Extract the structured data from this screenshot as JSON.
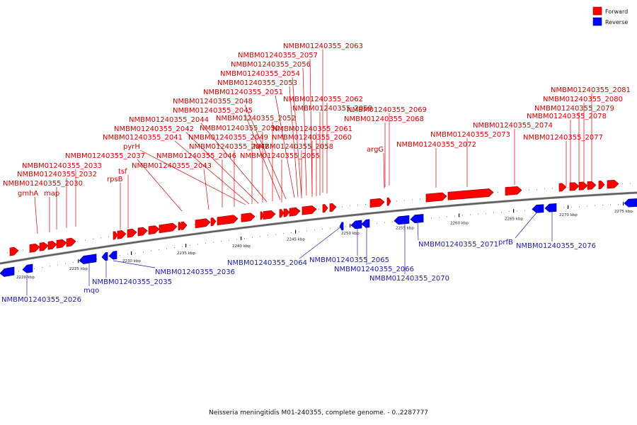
{
  "legend": {
    "forward": "Forward",
    "reverse": "Reverse",
    "forward_color": "#ff0000",
    "reverse_color": "#0000ff"
  },
  "caption": "Neisseria meningitidis M01-240355, complete genome. - 0..2287777",
  "ticks": [
    "2220 kbp",
    "2225 kbp",
    "2230 kbp",
    "2235 kbp",
    "2240 kbp",
    "2245 kbp",
    "2250 kbp",
    "2255 kbp",
    "2260 kbp",
    "2265 kbp",
    "2270 kbp",
    "2275 kbp"
  ],
  "forward_genes": [
    {
      "name": "NMBM01240355_2063"
    },
    {
      "name": "NMBM01240355_2057"
    },
    {
      "name": "NMBM01240355_2056"
    },
    {
      "name": "NMBM01240355_2054"
    },
    {
      "name": "NMBM01240355_2053"
    },
    {
      "name": "NMBM01240355_2051"
    },
    {
      "name": "NMBM01240355_2048"
    },
    {
      "name": "NMBM01240355_2062"
    },
    {
      "name": "NMBM01240355_2045"
    },
    {
      "name": "NMBM01240355_2052"
    },
    {
      "name": "NMBM01240355_2059"
    },
    {
      "name": "NMBM01240355_2069"
    },
    {
      "name": "NMBM01240355_2044"
    },
    {
      "name": "NMBM01240355_2068"
    },
    {
      "name": "NMBM01240355_2042"
    },
    {
      "name": "NMBM01240355_2050"
    },
    {
      "name": "NMBM01240355_2061"
    },
    {
      "name": "NMBM01240355_2041"
    },
    {
      "name": "NMBM01240355_2049"
    },
    {
      "name": "NMBM01240355_2060"
    },
    {
      "name": "pyrH"
    },
    {
      "name": "NMBM01240355_2047"
    },
    {
      "name": "NMBM01240355_2058"
    },
    {
      "name": "NMBM01240355_2037"
    },
    {
      "name": "NMBM01240355_2046"
    },
    {
      "name": "NMBM01240355_2055"
    },
    {
      "name": "NMBM01240355_2033"
    },
    {
      "name": "NMBM01240355_2043"
    },
    {
      "name": "tsf"
    },
    {
      "name": "NMBM01240355_2032"
    },
    {
      "name": "rpsB"
    },
    {
      "name": "NMBM01240355_2030"
    },
    {
      "name": "gmhA"
    },
    {
      "name": "map"
    },
    {
      "name": "argG"
    },
    {
      "name": "NMBM01240355_2073"
    },
    {
      "name": "NMBM01240355_2072"
    },
    {
      "name": "NMBM01240355_2074"
    },
    {
      "name": "NMBM01240355_2081"
    },
    {
      "name": "NMBM01240355_2080"
    },
    {
      "name": "NMBM01240355_2079"
    },
    {
      "name": "NMBM01240355_2078"
    },
    {
      "name": "NMBM01240355_2077"
    }
  ],
  "reverse_genes": [
    {
      "name": "NMBM01240355_2064"
    },
    {
      "name": "NMBM01240355_2065"
    },
    {
      "name": "NMBM01240355_2066"
    },
    {
      "name": "NMBM01240355_2070"
    },
    {
      "name": "NMBM01240355_2071"
    },
    {
      "name": "prfB"
    },
    {
      "name": "NMBM01240355_2076"
    },
    {
      "name": "NMBM01240355_2036"
    },
    {
      "name": "NMBM01240355_2035"
    },
    {
      "name": "mqo"
    },
    {
      "name": "NMBM01240355_2026"
    }
  ]
}
